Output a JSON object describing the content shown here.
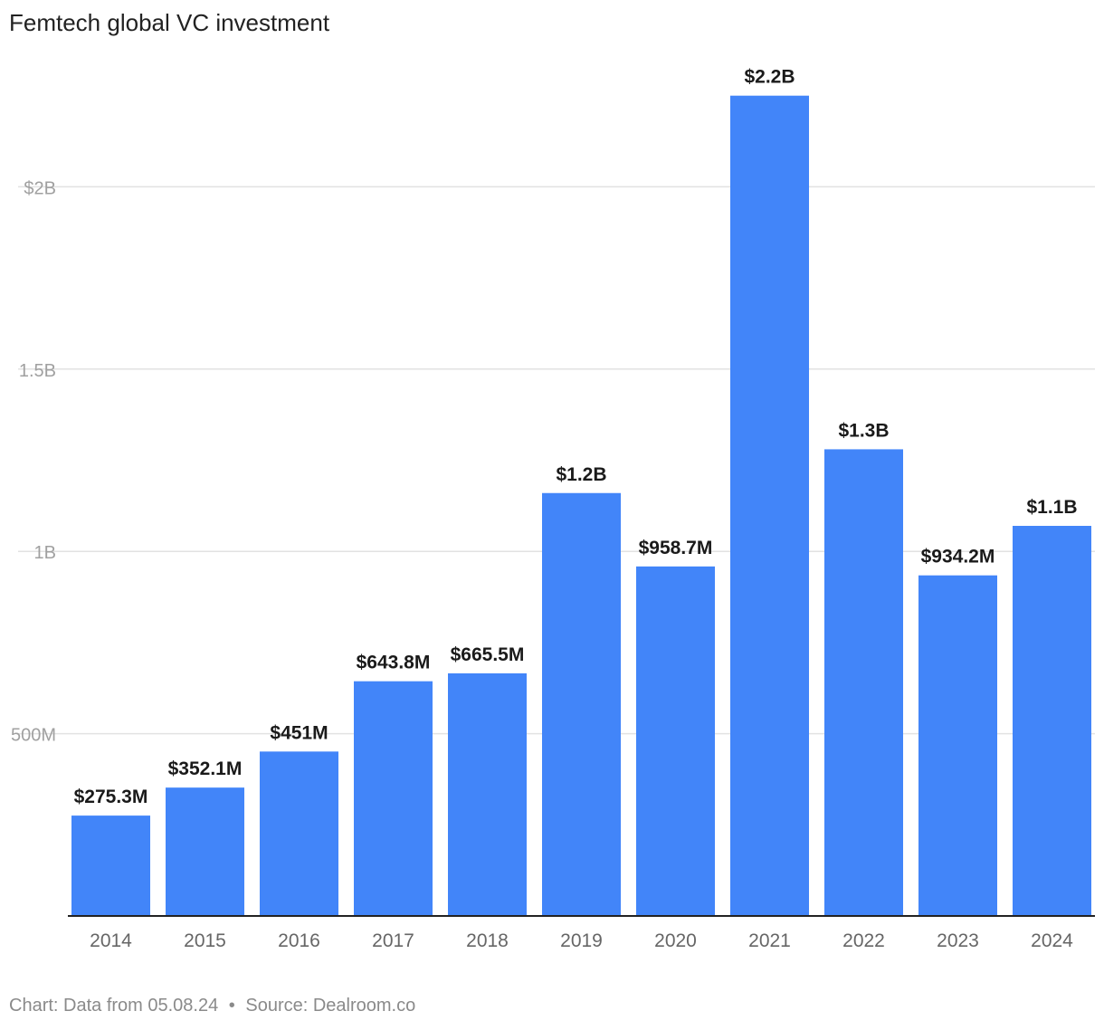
{
  "chart_data": {
    "type": "bar",
    "title": "Femtech global VC investment",
    "categories": [
      "2014",
      "2015",
      "2016",
      "2017",
      "2018",
      "2019",
      "2020",
      "2021",
      "2022",
      "2023",
      "2024"
    ],
    "values": [
      275.3,
      352.1,
      451,
      643.8,
      665.5,
      1160,
      958.7,
      2250,
      1280,
      934.2,
      1070
    ],
    "value_units": "millions USD",
    "data_labels": [
      "$275.3M",
      "$352.1M",
      "$451M",
      "$643.8M",
      "$665.5M",
      "$1.2B",
      "$958.7M",
      "$2.2B",
      "$1.3B",
      "$934.2M",
      "$1.1B"
    ],
    "y_ticks": [
      {
        "value": 500,
        "label": "500M"
      },
      {
        "value": 1000,
        "label": "1B"
      },
      {
        "value": 1500,
        "label": "1.5B"
      },
      {
        "value": 2000,
        "label": "$2B"
      }
    ],
    "ylim": [
      0,
      2500
    ],
    "grid": true,
    "legend": "none",
    "bar_color": "#4285f9",
    "grid_color": "#e2e2e2",
    "tick_label_color": "#a0a0a0",
    "axis_label_color": "#666666",
    "data_label_color": "#1a1a1a"
  },
  "footer": {
    "chart_note": "Chart: Data from 05.08.24",
    "separator": "•",
    "source": "Source: Dealroom.co"
  }
}
